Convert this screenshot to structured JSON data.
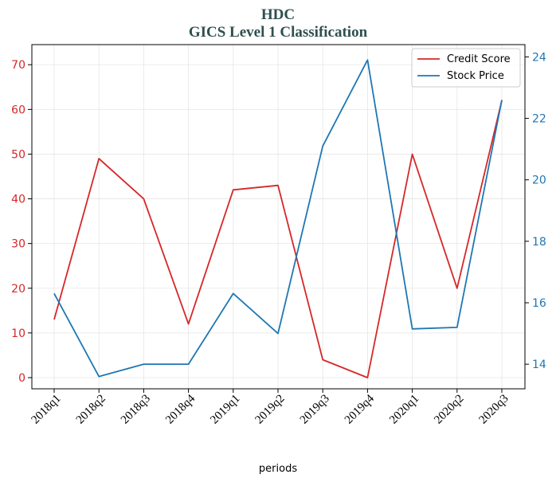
{
  "chart_data": {
    "type": "line",
    "title": "HDC",
    "subtitle": "GICS Level 1 Classification",
    "xlabel": "periods",
    "categories": [
      "2018q1",
      "2018q2",
      "2018q3",
      "2018q4",
      "2019q1",
      "2019q2",
      "2019q3",
      "2019q4",
      "2020q1",
      "2020q2",
      "2020q3"
    ],
    "series": [
      {
        "name": "Credit Score",
        "axis": "left",
        "color": "#d62728",
        "values": [
          13,
          49,
          40,
          12,
          42,
          43,
          4,
          0,
          50,
          20,
          62
        ]
      },
      {
        "name": "Stock Price",
        "axis": "right",
        "color": "#1f77b4",
        "values": [
          16.3,
          13.6,
          14.0,
          14.0,
          16.3,
          15.0,
          21.1,
          23.9,
          15.15,
          15.2,
          22.6
        ]
      }
    ],
    "y_left": {
      "lim": [
        -2.5,
        74.5
      ],
      "ticks": [
        0,
        10,
        20,
        30,
        40,
        50,
        60,
        70
      ]
    },
    "y_right": {
      "lim": [
        13.2,
        24.4
      ],
      "ticks": [
        14,
        16,
        18,
        20,
        22,
        24
      ]
    },
    "grid": true,
    "legend_position": "top-right"
  }
}
